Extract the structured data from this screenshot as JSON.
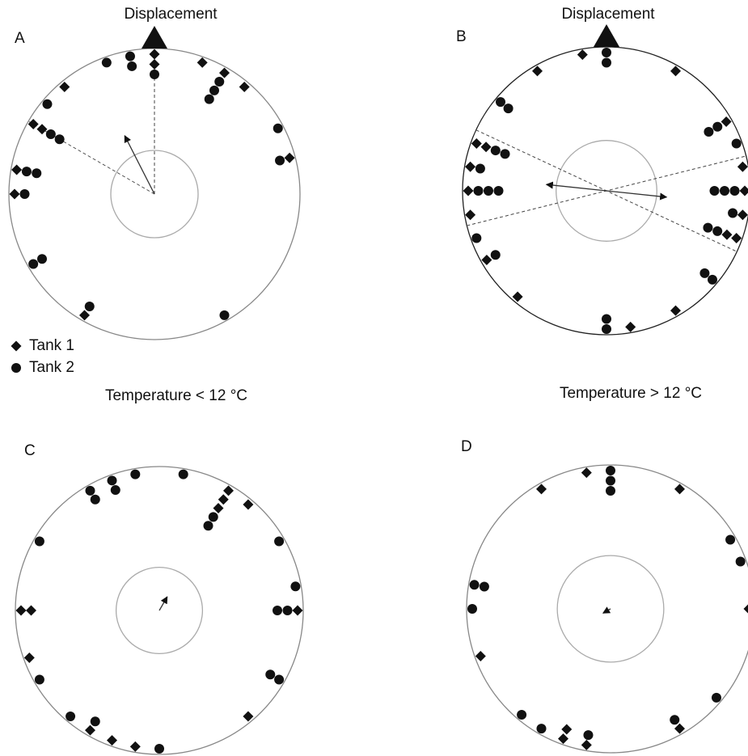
{
  "chart_data": [
    {
      "type": "circular",
      "label": "A",
      "title": "Displacement",
      "caption": "Temperature < 12 °C",
      "legend": true,
      "alim": [
        0,
        360
      ],
      "rlim": [
        0,
        1
      ],
      "critical_r": 0.3,
      "series": [
        {
          "name": "Tank 1",
          "marker": "diamond",
          "values": [
            0,
            0,
            320,
            300,
            300,
            280,
            270,
            210,
            75,
            40,
            20,
            30
          ]
        },
        {
          "name": "Tank 2",
          "marker": "circle",
          "values": [
            0,
            350,
            350,
            340,
            310,
            300,
            300,
            280,
            280,
            270,
            240,
            240,
            210,
            150,
            62,
            75,
            30,
            30,
            30
          ]
        }
      ],
      "mean": {
        "angle": 333,
        "length": 0.45
      },
      "ci": [
        300,
        360
      ],
      "axial": false
    },
    {
      "type": "circular",
      "label": "B",
      "title": "Displacement",
      "caption": "Temperature > 12 °C",
      "alim": [
        0,
        360
      ],
      "rlim": [
        0,
        1
      ],
      "critical_r": 0.35,
      "series": [
        {
          "marker": "diamond",
          "values": [
            350,
            330,
            30,
            290,
            290,
            280,
            270,
            260,
            240,
            220,
            170,
            150,
            110,
            110,
            100,
            90,
            80,
            60
          ]
        },
        {
          "marker": "circle",
          "values": [
            0,
            0,
            310,
            310,
            290,
            290,
            280,
            270,
            270,
            270,
            250,
            240,
            180,
            180,
            130,
            130,
            110,
            110,
            100,
            90,
            90,
            90,
            70,
            60,
            60
          ]
        }
      ],
      "mean": {
        "angle": 96,
        "length": 0.42
      },
      "ci": [
        76,
        115
      ],
      "axial": true
    },
    {
      "type": "circular",
      "label": "C",
      "alim": [
        0,
        360
      ],
      "rlim": [
        0,
        1
      ],
      "critical_r": 0.3,
      "series": [
        {
          "marker": "diamond",
          "values": [
            30,
            30,
            30,
            40,
            90,
            270,
            270,
            250,
            140,
            210,
            200,
            190
          ]
        },
        {
          "marker": "circle",
          "values": [
            350,
            10,
            340,
            340,
            330,
            330,
            30,
            30,
            300,
            60,
            80,
            90,
            90,
            240,
            120,
            120,
            220,
            210,
            180
          ]
        }
      ],
      "mean": {
        "angle": 30,
        "length": 0.11
      },
      "axial": false
    },
    {
      "type": "circular",
      "label": "D",
      "alim": [
        0,
        360
      ],
      "rlim": [
        0,
        1
      ],
      "critical_r": 0.37,
      "series": [
        {
          "marker": "diamond",
          "values": [
            350,
            330,
            30,
            90,
            250,
            150,
            200,
            200,
            190
          ]
        },
        {
          "marker": "circle",
          "values": [
            0,
            0,
            0,
            60,
            70,
            280,
            280,
            270,
            130,
            150,
            220,
            210,
            190
          ]
        }
      ],
      "mean": {
        "angle": 240,
        "length": 0.06
      },
      "axial": false
    }
  ]
}
